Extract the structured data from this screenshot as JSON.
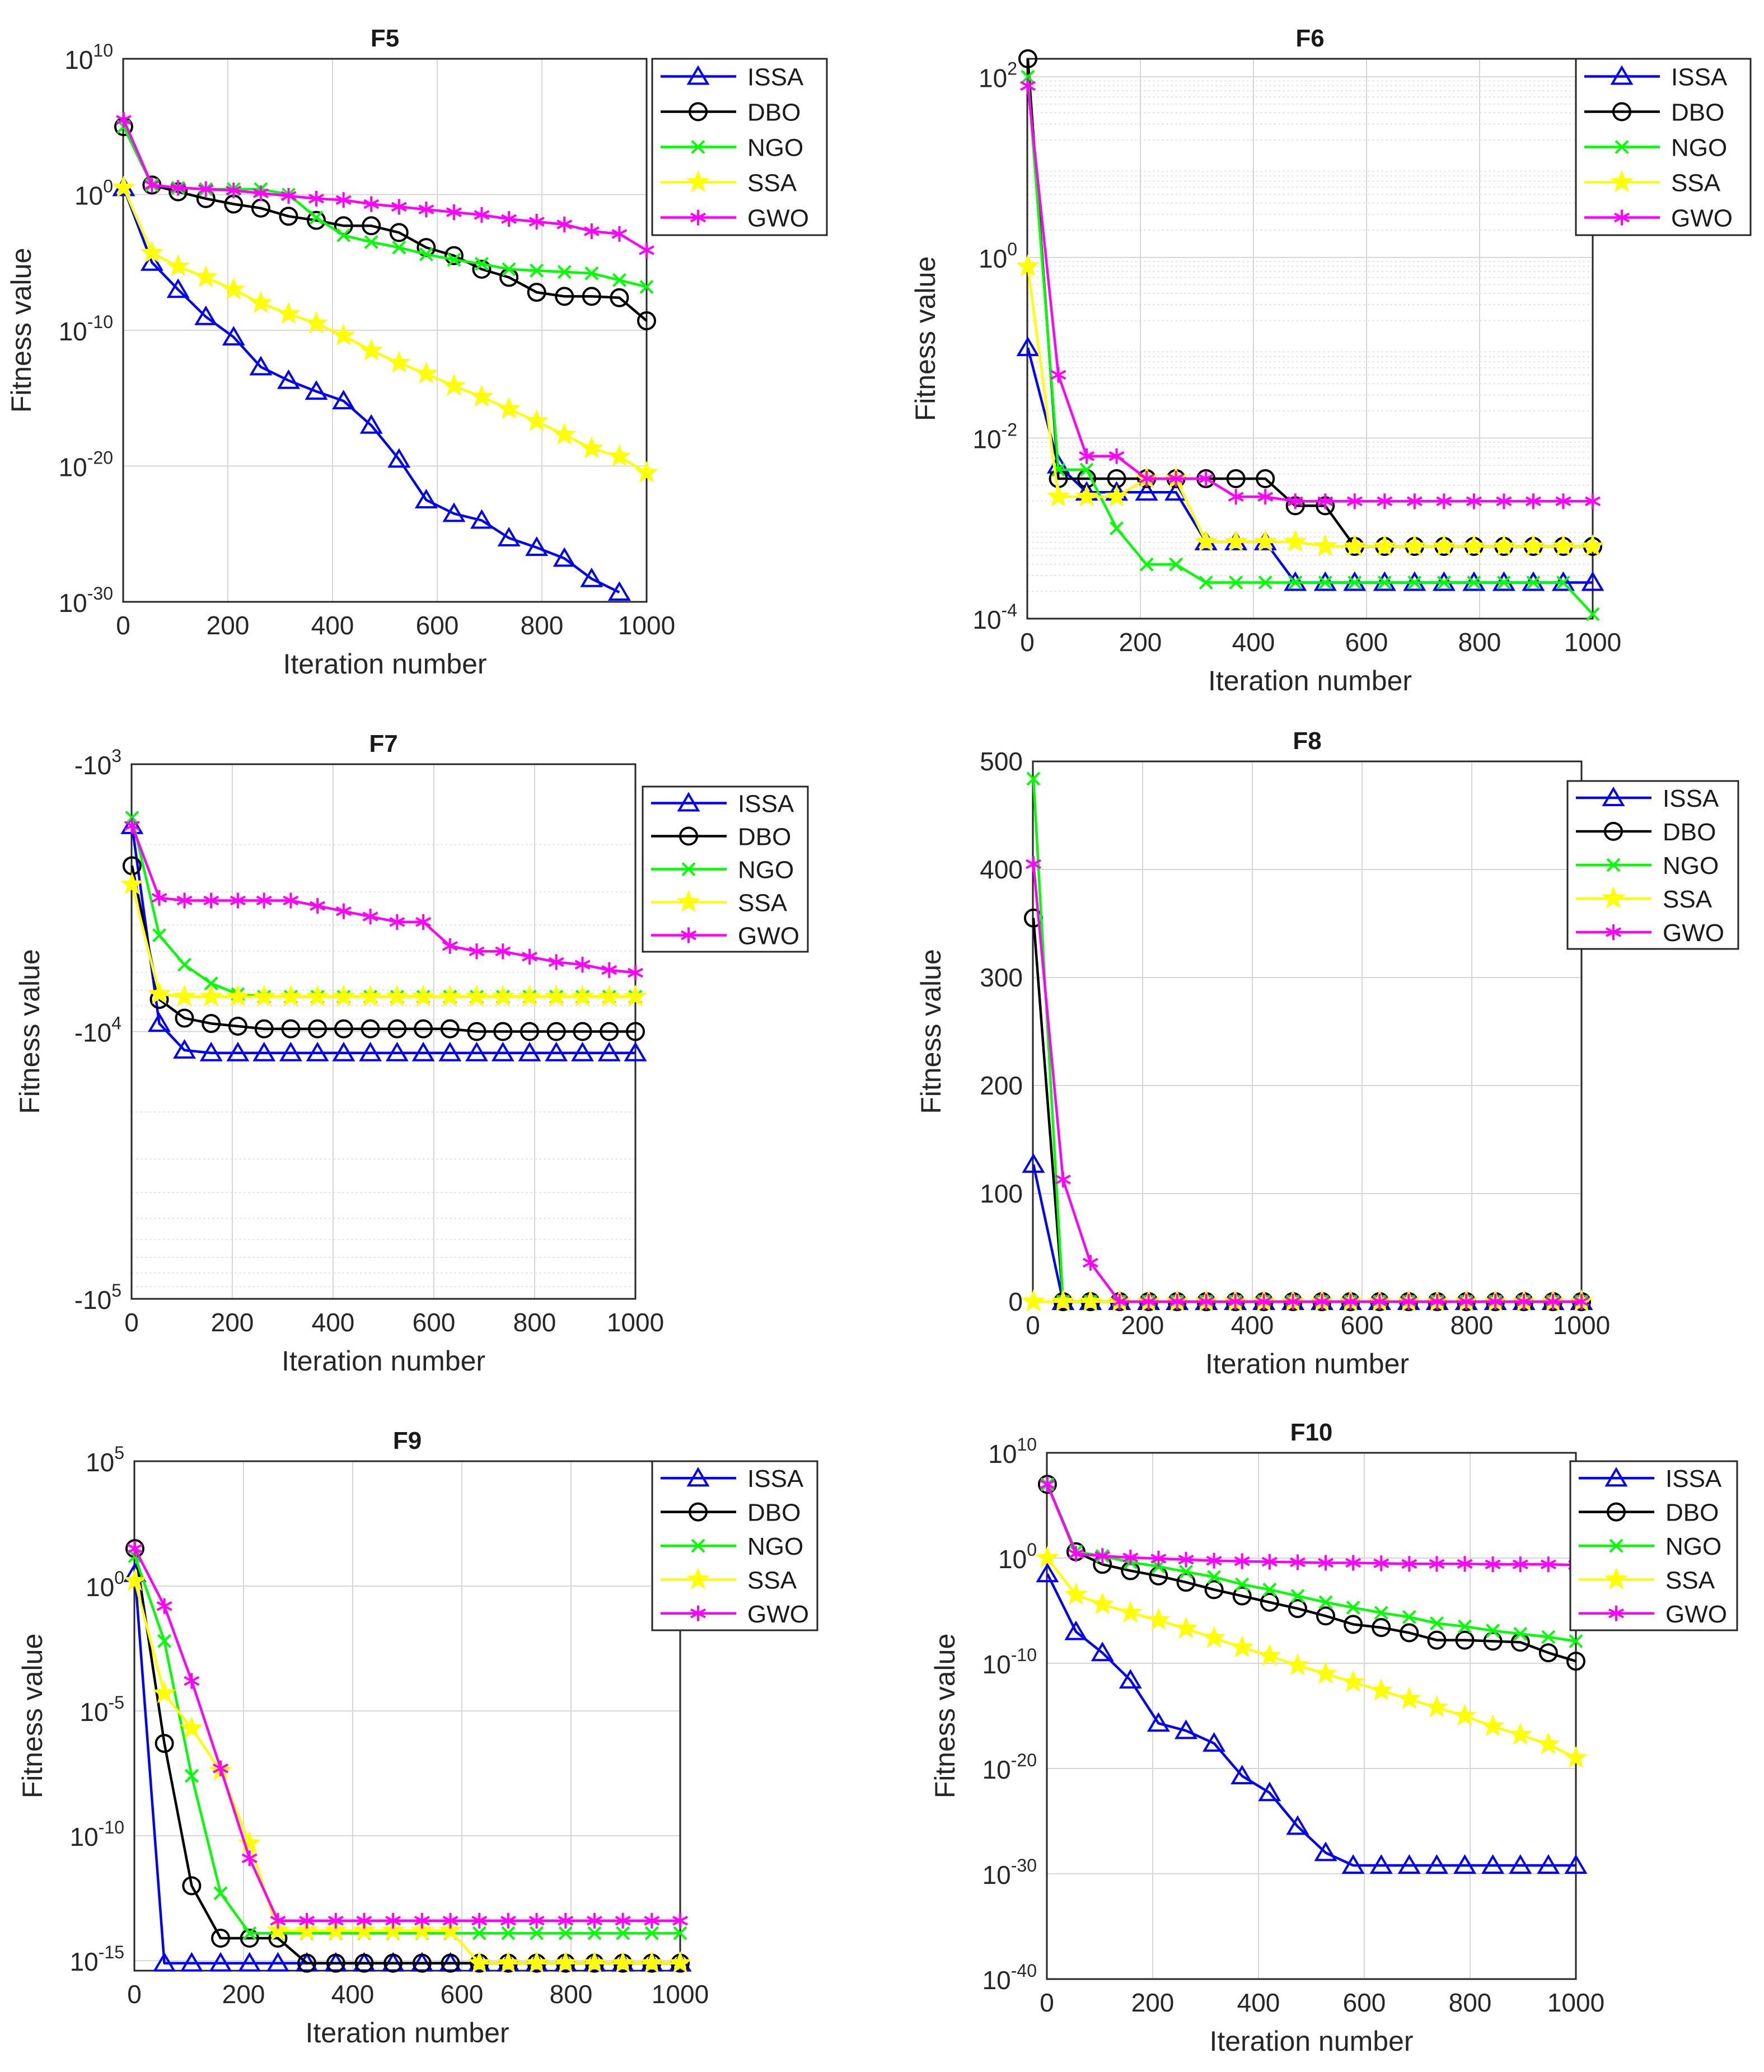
{
  "colors": {
    "ISSA": "#0000ff",
    "DBO": "#000000",
    "NGO": "#00ff00",
    "SSA": "#ffff00",
    "GWO": "#ff00ff",
    "grid": "#d6d6d6",
    "axis": "#262626"
  },
  "markers": {
    "ISSA": "triangle",
    "DBO": "circle",
    "NGO": "x",
    "SSA": "star",
    "GWO": "asterisk"
  },
  "chart_data": [
    {
      "type": "line",
      "title": "F5",
      "xlabel": "Iteration number",
      "ylabel": "Fitness value",
      "xlim": [
        0,
        1000
      ],
      "xticks": [
        0,
        200,
        400,
        600,
        800,
        1000
      ],
      "yscale": "log",
      "ylim_exp": [
        -30,
        10
      ],
      "yticks_exp": [
        -30,
        -20,
        -10,
        0,
        10
      ],
      "ytick_labels": [
        {
          "base": "10",
          "exp": "-30"
        },
        {
          "base": "10",
          "exp": "-20"
        },
        {
          "base": "10",
          "exp": "-10"
        },
        {
          "base": "10",
          "exp": "0"
        },
        {
          "base": "10",
          "exp": "10"
        }
      ],
      "legend": "top-right",
      "x": [
        1,
        55,
        105,
        158,
        211,
        263,
        316,
        369,
        421,
        474,
        527,
        579,
        632,
        685,
        737,
        790,
        843,
        895,
        948,
        1000
      ],
      "series": [
        {
          "name": "ISSA",
          "values_exp": [
            0.5,
            -5,
            -7,
            -9,
            -10.5,
            -12.7,
            -13.7,
            -14.5,
            -15.2,
            -17,
            -19.5,
            -22.5,
            -23.5,
            -24,
            -25.3,
            -26,
            -26.8,
            -28.3,
            -29.3,
            null
          ]
        },
        {
          "name": "DBO",
          "values_exp": [
            5,
            0.7,
            0.2,
            -0.3,
            -0.7,
            -1,
            -1.6,
            -1.9,
            -2.3,
            -2.3,
            -2.8,
            -3.9,
            -4.5,
            -5.5,
            -6.1,
            -7.2,
            -7.5,
            -7.5,
            -7.6,
            -9.3
          ]
        },
        {
          "name": "NGO",
          "values_exp": [
            5,
            0.7,
            0.5,
            0.4,
            0.4,
            0.4,
            0,
            -1.7,
            -3,
            -3.5,
            -3.9,
            -4.4,
            -4.8,
            -5.1,
            -5.5,
            -5.6,
            -5.7,
            -5.8,
            -6.3,
            -6.8
          ]
        },
        {
          "name": "SSA",
          "values_exp": [
            0.5,
            -4.3,
            -5.3,
            -6.1,
            -7,
            -8,
            -8.8,
            -9.5,
            -10.4,
            -11.5,
            -12.4,
            -13.2,
            -14.1,
            -14.9,
            -15.8,
            -16.7,
            -17.7,
            -18.7,
            -19.3,
            -20.5
          ]
        },
        {
          "name": "GWO",
          "values_exp": [
            5.5,
            0.7,
            0.5,
            0.4,
            0.3,
            0.1,
            -0.1,
            -0.3,
            -0.4,
            -0.7,
            -0.9,
            -1.1,
            -1.3,
            -1.5,
            -1.8,
            -2,
            -2.2,
            -2.7,
            -2.9,
            -4.1
          ]
        }
      ]
    },
    {
      "type": "line",
      "title": "F6",
      "xlabel": "Iteration number",
      "ylabel": "Fitness value",
      "xlim": [
        0,
        1000
      ],
      "xticks": [
        0,
        200,
        400,
        600,
        800,
        1000
      ],
      "yscale": "log",
      "ylim_exp": [
        -4,
        2.2
      ],
      "yticks_exp": [
        -4,
        -2,
        0,
        2
      ],
      "ytick_labels": [
        {
          "base": "10",
          "exp": "-4"
        },
        {
          "base": "10",
          "exp": "-2"
        },
        {
          "base": "10",
          "exp": "0"
        },
        {
          "base": "10",
          "exp": "2"
        }
      ],
      "minor_grid": true,
      "legend": "top-right",
      "x": [
        1,
        55,
        105,
        158,
        211,
        263,
        316,
        369,
        421,
        474,
        527,
        579,
        632,
        685,
        737,
        790,
        843,
        895,
        948,
        1000
      ],
      "series": [
        {
          "name": "ISSA",
          "values_exp": [
            -1,
            -2.3,
            -2.6,
            -2.6,
            -2.6,
            -2.6,
            -3.15,
            -3.15,
            -3.15,
            -3.6,
            -3.6,
            -3.6,
            -3.6,
            -3.6,
            -3.6,
            -3.6,
            -3.6,
            -3.6,
            -3.6,
            -3.6
          ]
        },
        {
          "name": "DBO",
          "values_exp": [
            2.2,
            -2.45,
            -2.45,
            -2.45,
            -2.45,
            -2.45,
            -2.45,
            -2.45,
            -2.45,
            -2.75,
            -2.75,
            -3.2,
            -3.2,
            -3.2,
            -3.2,
            -3.2,
            -3.2,
            -3.2,
            -3.2,
            -3.2
          ]
        },
        {
          "name": "NGO",
          "values_exp": [
            2,
            -2.35,
            -2.35,
            -3,
            -3.4,
            -3.4,
            -3.6,
            -3.6,
            -3.6,
            -3.6,
            -3.6,
            -3.6,
            -3.6,
            -3.6,
            -3.6,
            -3.6,
            -3.6,
            -3.6,
            -3.6,
            -3.95
          ]
        },
        {
          "name": "SSA",
          "values_exp": [
            -0.1,
            -2.65,
            -2.65,
            -2.65,
            -2.45,
            -2.45,
            -3.15,
            -3.15,
            -3.15,
            -3.15,
            -3.2,
            -3.2,
            -3.2,
            -3.2,
            -3.2,
            -3.2,
            -3.2,
            -3.2,
            -3.2,
            -3.2
          ]
        },
        {
          "name": "GWO",
          "values_exp": [
            1.9,
            -1.3,
            -2.2,
            -2.2,
            -2.45,
            -2.45,
            -2.45,
            -2.65,
            -2.65,
            -2.7,
            -2.7,
            -2.7,
            -2.7,
            -2.7,
            -2.7,
            -2.7,
            -2.7,
            -2.7,
            -2.7,
            -2.7
          ]
        }
      ]
    },
    {
      "type": "line",
      "title": "F7",
      "xlabel": "Iteration number",
      "ylabel": "Fitness value",
      "xlim": [
        0,
        1000
      ],
      "xticks": [
        0,
        200,
        400,
        600,
        800,
        1000
      ],
      "yscale": "neglog",
      "ylim_exp": [
        3,
        5
      ],
      "yticks_exp": [
        3,
        4,
        5
      ],
      "ytick_labels": [
        {
          "base": "-10",
          "exp": "3"
        },
        {
          "base": "-10",
          "exp": "4"
        },
        {
          "base": "-10",
          "exp": "5"
        }
      ],
      "minor_grid": true,
      "legend": "top-right",
      "x": [
        1,
        55,
        105,
        158,
        211,
        263,
        316,
        369,
        421,
        474,
        527,
        579,
        632,
        685,
        737,
        790,
        843,
        895,
        948,
        1000
      ],
      "series": [
        {
          "name": "ISSA",
          "values_exp": [
            3.23,
            3.97,
            4.07,
            4.08,
            4.08,
            4.08,
            4.08,
            4.08,
            4.08,
            4.08,
            4.08,
            4.08,
            4.08,
            4.08,
            4.08,
            4.08,
            4.08,
            4.08,
            4.08,
            4.08
          ]
        },
        {
          "name": "DBO",
          "values_exp": [
            3.38,
            3.88,
            3.95,
            3.97,
            3.98,
            3.99,
            3.99,
            3.99,
            3.99,
            3.99,
            3.99,
            3.99,
            3.99,
            4,
            4,
            4,
            4,
            4,
            4,
            4
          ]
        },
        {
          "name": "NGO",
          "values_exp": [
            3.2,
            3.64,
            3.75,
            3.82,
            3.86,
            3.87,
            3.87,
            3.87,
            3.87,
            3.87,
            3.87,
            3.87,
            3.87,
            3.87,
            3.87,
            3.87,
            3.87,
            3.87,
            3.87,
            3.87
          ]
        },
        {
          "name": "SSA",
          "values_exp": [
            3.45,
            3.86,
            3.87,
            3.87,
            3.87,
            3.87,
            3.87,
            3.87,
            3.87,
            3.87,
            3.87,
            3.87,
            3.87,
            3.87,
            3.87,
            3.87,
            3.87,
            3.87,
            3.87,
            3.87
          ]
        },
        {
          "name": "GWO",
          "values_exp": [
            3.23,
            3.5,
            3.51,
            3.51,
            3.51,
            3.51,
            3.51,
            3.53,
            3.55,
            3.57,
            3.59,
            3.59,
            3.68,
            3.7,
            3.7,
            3.72,
            3.74,
            3.75,
            3.77,
            3.78
          ]
        }
      ]
    },
    {
      "type": "line",
      "title": "F8",
      "xlabel": "Iteration number",
      "ylabel": "Fitness value",
      "xlim": [
        0,
        1000
      ],
      "xticks": [
        0,
        200,
        400,
        600,
        800,
        1000
      ],
      "yscale": "linear",
      "ylim": [
        0,
        500
      ],
      "yticks": [
        0,
        100,
        200,
        300,
        400,
        500
      ],
      "ytick_labels": [
        "0",
        "100",
        "200",
        "300",
        "400",
        "500"
      ],
      "legend": "top-right",
      "x": [
        1,
        55,
        105,
        158,
        211,
        263,
        316,
        369,
        421,
        474,
        527,
        579,
        632,
        685,
        737,
        790,
        843,
        895,
        948,
        1000
      ],
      "series": [
        {
          "name": "ISSA",
          "values": [
            127,
            0,
            0,
            0,
            0,
            0,
            0,
            0,
            0,
            0,
            0,
            0,
            0,
            0,
            0,
            0,
            0,
            0,
            0,
            0
          ]
        },
        {
          "name": "DBO",
          "values": [
            355,
            0,
            0,
            0,
            0,
            0,
            0,
            0,
            0,
            0,
            0,
            0,
            0,
            0,
            0,
            0,
            0,
            0,
            0,
            0
          ]
        },
        {
          "name": "NGO",
          "values": [
            484,
            0,
            0,
            0,
            0,
            0,
            0,
            0,
            0,
            0,
            0,
            0,
            0,
            0,
            0,
            0,
            0,
            0,
            0,
            0
          ]
        },
        {
          "name": "SSA",
          "values": [
            0,
            0,
            0,
            0,
            0,
            0,
            0,
            0,
            0,
            0,
            0,
            0,
            0,
            0,
            0,
            0,
            0,
            0,
            0,
            0
          ]
        },
        {
          "name": "GWO",
          "values": [
            405,
            113,
            36,
            0,
            0,
            0,
            0,
            0,
            0,
            0,
            0,
            0,
            0,
            0,
            0,
            0,
            0,
            0,
            0,
            0
          ]
        }
      ]
    },
    {
      "type": "line",
      "title": "F9",
      "xlabel": "Iteration number",
      "ylabel": "Fitness value",
      "xlim": [
        0,
        1000
      ],
      "xticks": [
        0,
        200,
        400,
        600,
        800,
        1000
      ],
      "yscale": "log",
      "ylim_exp": [
        -15.4,
        5
      ],
      "yticks_exp": [
        -15,
        -10,
        -5,
        0,
        5
      ],
      "ytick_labels": [
        {
          "base": "10",
          "exp": "-15"
        },
        {
          "base": "10",
          "exp": "-10"
        },
        {
          "base": "10",
          "exp": "-5"
        },
        {
          "base": "10",
          "exp": "0"
        },
        {
          "base": "10",
          "exp": "5"
        }
      ],
      "legend": "top-right",
      "x": [
        1,
        55,
        105,
        158,
        211,
        263,
        316,
        369,
        421,
        474,
        527,
        579,
        632,
        685,
        737,
        790,
        843,
        895,
        948,
        1000
      ],
      "series": [
        {
          "name": "ISSA",
          "values_exp": [
            0.5,
            -15.1,
            -15.1,
            -15.1,
            -15.1,
            -15.1,
            -15.1,
            -15.1,
            -15.1,
            -15.1,
            -15.1,
            -15.1,
            -15.1,
            -15.1,
            -15.1,
            -15.1,
            -15.1,
            -15.1,
            -15.1,
            -15.1
          ]
        },
        {
          "name": "DBO",
          "values_exp": [
            1.5,
            -6.3,
            -12,
            -14.1,
            -14.1,
            -14.1,
            -15.1,
            -15.1,
            -15.1,
            -15.1,
            -15.1,
            -15.1,
            -15.1,
            -15.1,
            -15.1,
            -15.1,
            -15.1,
            -15.1,
            -15.1,
            -15.1
          ]
        },
        {
          "name": "NGO",
          "values_exp": [
            1.2,
            -2.2,
            -7.6,
            -12.3,
            -13.9,
            -13.9,
            -13.9,
            -13.9,
            -13.9,
            -13.9,
            -13.9,
            -13.9,
            -13.9,
            -13.9,
            -13.9,
            -13.9,
            -13.9,
            -13.9,
            -13.9,
            -13.9
          ]
        },
        {
          "name": "SSA",
          "values_exp": [
            0.2,
            -4.3,
            -5.7,
            -7.4,
            -10.3,
            -13.8,
            -13.8,
            -13.8,
            -13.8,
            -13.8,
            -13.8,
            -13.8,
            -15.1,
            -15.1,
            -15.1,
            -15.1,
            -15.1,
            -15.1,
            -15.1,
            -15.1
          ]
        },
        {
          "name": "GWO",
          "values_exp": [
            1.5,
            -0.8,
            -3.8,
            -7.3,
            -10.9,
            -13.4,
            -13.4,
            -13.4,
            -13.4,
            -13.4,
            -13.4,
            -13.4,
            -13.4,
            -13.4,
            -13.4,
            -13.4,
            -13.4,
            -13.4,
            -13.4,
            -13.4
          ]
        }
      ]
    },
    {
      "type": "line",
      "title": "F10",
      "xlabel": "Iteration number",
      "ylabel": "Fitness value",
      "xlim": [
        0,
        1000
      ],
      "xticks": [
        0,
        200,
        400,
        600,
        800,
        1000
      ],
      "yscale": "log",
      "ylim_exp": [
        -40,
        10
      ],
      "yticks_exp": [
        -40,
        -30,
        -20,
        -10,
        0,
        10
      ],
      "ytick_labels": [
        {
          "base": "10",
          "exp": "-40"
        },
        {
          "base": "10",
          "exp": "-30"
        },
        {
          "base": "10",
          "exp": "-20"
        },
        {
          "base": "10",
          "exp": "-10"
        },
        {
          "base": "10",
          "exp": "0"
        },
        {
          "base": "10",
          "exp": "10"
        }
      ],
      "legend": "top-right",
      "x": [
        1,
        55,
        105,
        158,
        211,
        263,
        316,
        369,
        421,
        474,
        527,
        579,
        632,
        685,
        737,
        790,
        843,
        895,
        948,
        1000
      ],
      "series": [
        {
          "name": "ISSA",
          "values_exp": [
            -1.5,
            -7,
            -9,
            -11.6,
            -15.7,
            -16.4,
            -17.6,
            -20.7,
            -22.3,
            -25.5,
            -28,
            -29.2,
            -29.2,
            -29.2,
            -29.2,
            -29.2,
            -29.2,
            -29.2,
            -29.2,
            -29.2
          ]
        },
        {
          "name": "DBO",
          "values_exp": [
            7,
            0.6,
            -0.6,
            -1.2,
            -1.7,
            -2.3,
            -3,
            -3.6,
            -4.2,
            -4.8,
            -5.5,
            -6.3,
            -6.6,
            -7.1,
            -7.8,
            -7.8,
            -7.9,
            -8,
            -9,
            -9.8
          ]
        },
        {
          "name": "NGO",
          "values_exp": [
            7,
            0.6,
            0.2,
            -0.4,
            -0.8,
            -1.3,
            -1.8,
            -2.5,
            -3,
            -3.6,
            -4.2,
            -4.7,
            -5.2,
            -5.6,
            -6.2,
            -6.5,
            -6.9,
            -7.2,
            -7.5,
            -7.9
          ]
        },
        {
          "name": "SSA",
          "values_exp": [
            0,
            -3.5,
            -4.4,
            -5.2,
            -5.9,
            -6.7,
            -7.6,
            -8.5,
            -9.3,
            -10.2,
            -11,
            -11.8,
            -12.6,
            -13.4,
            -14.2,
            -15,
            -16,
            -16.8,
            -17.7,
            -19
          ]
        },
        {
          "name": "GWO",
          "values_exp": [
            7,
            0.4,
            0.2,
            0.05,
            -0.05,
            -0.15,
            -0.25,
            -0.3,
            -0.35,
            -0.4,
            -0.45,
            -0.45,
            -0.5,
            -0.55,
            -0.55,
            -0.55,
            -0.6,
            -0.6,
            -0.6,
            -0.65
          ]
        }
      ]
    }
  ]
}
